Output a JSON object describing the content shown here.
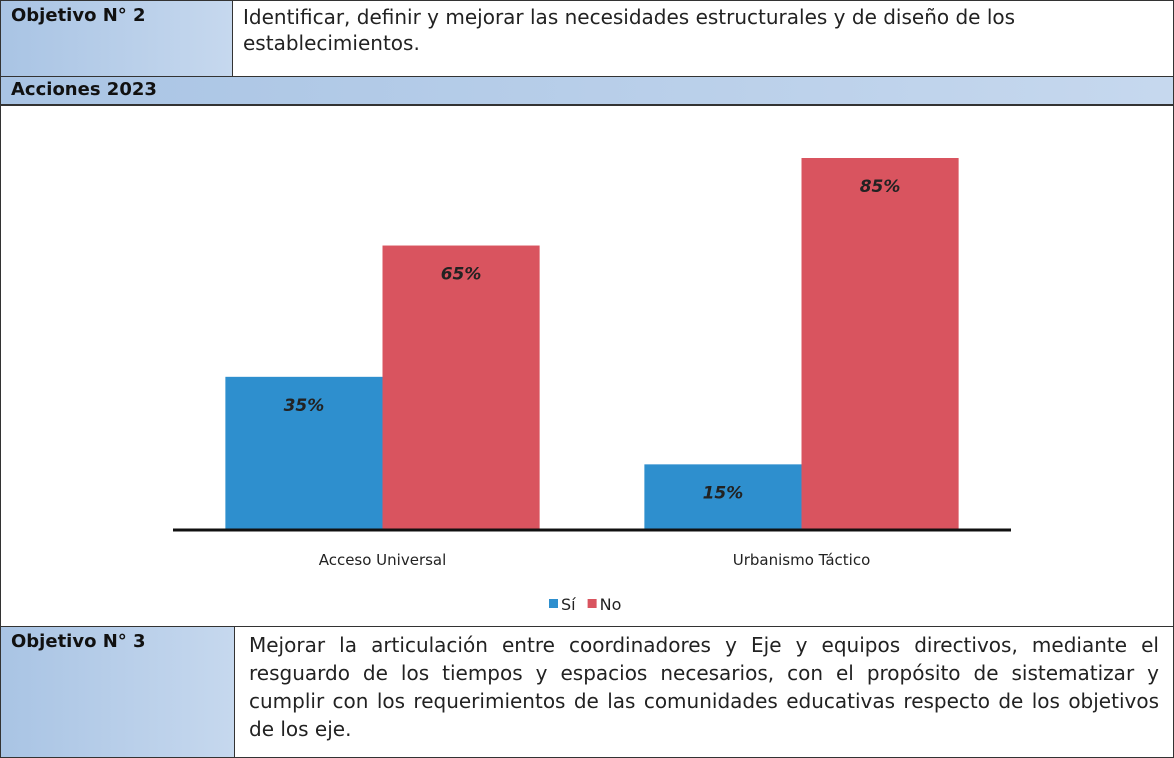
{
  "objective_2": {
    "label": "Objetivo N° 2",
    "text": "Identificar, definir y mejorar las necesidades estructurales y de diseño de los establecimientos."
  },
  "actions": {
    "label": "Acciones 2023"
  },
  "chart_data": {
    "type": "bar",
    "categories": [
      "Acceso Universal",
      "Urbanismo Táctico"
    ],
    "series": [
      {
        "name": "Sí",
        "color": "#2e8fce",
        "values": [
          35,
          15
        ],
        "value_labels": [
          "35%",
          "15%"
        ]
      },
      {
        "name": "No",
        "color": "#d9545f",
        "values": [
          65,
          85
        ],
        "value_labels": [
          "65%",
          "85%"
        ]
      }
    ],
    "legend": "bottom"
  },
  "objective_3": {
    "label": "Objetivo N° 3",
    "text": "Mejorar la articulación entre coordinadores y Eje y equipos directivos, mediante el resguardo de los tiempos y espacios necesarios, con el propósito de sistematizar y cumplir con los requerimientos de las comunidades educativas respecto de los objetivos de los eje."
  }
}
